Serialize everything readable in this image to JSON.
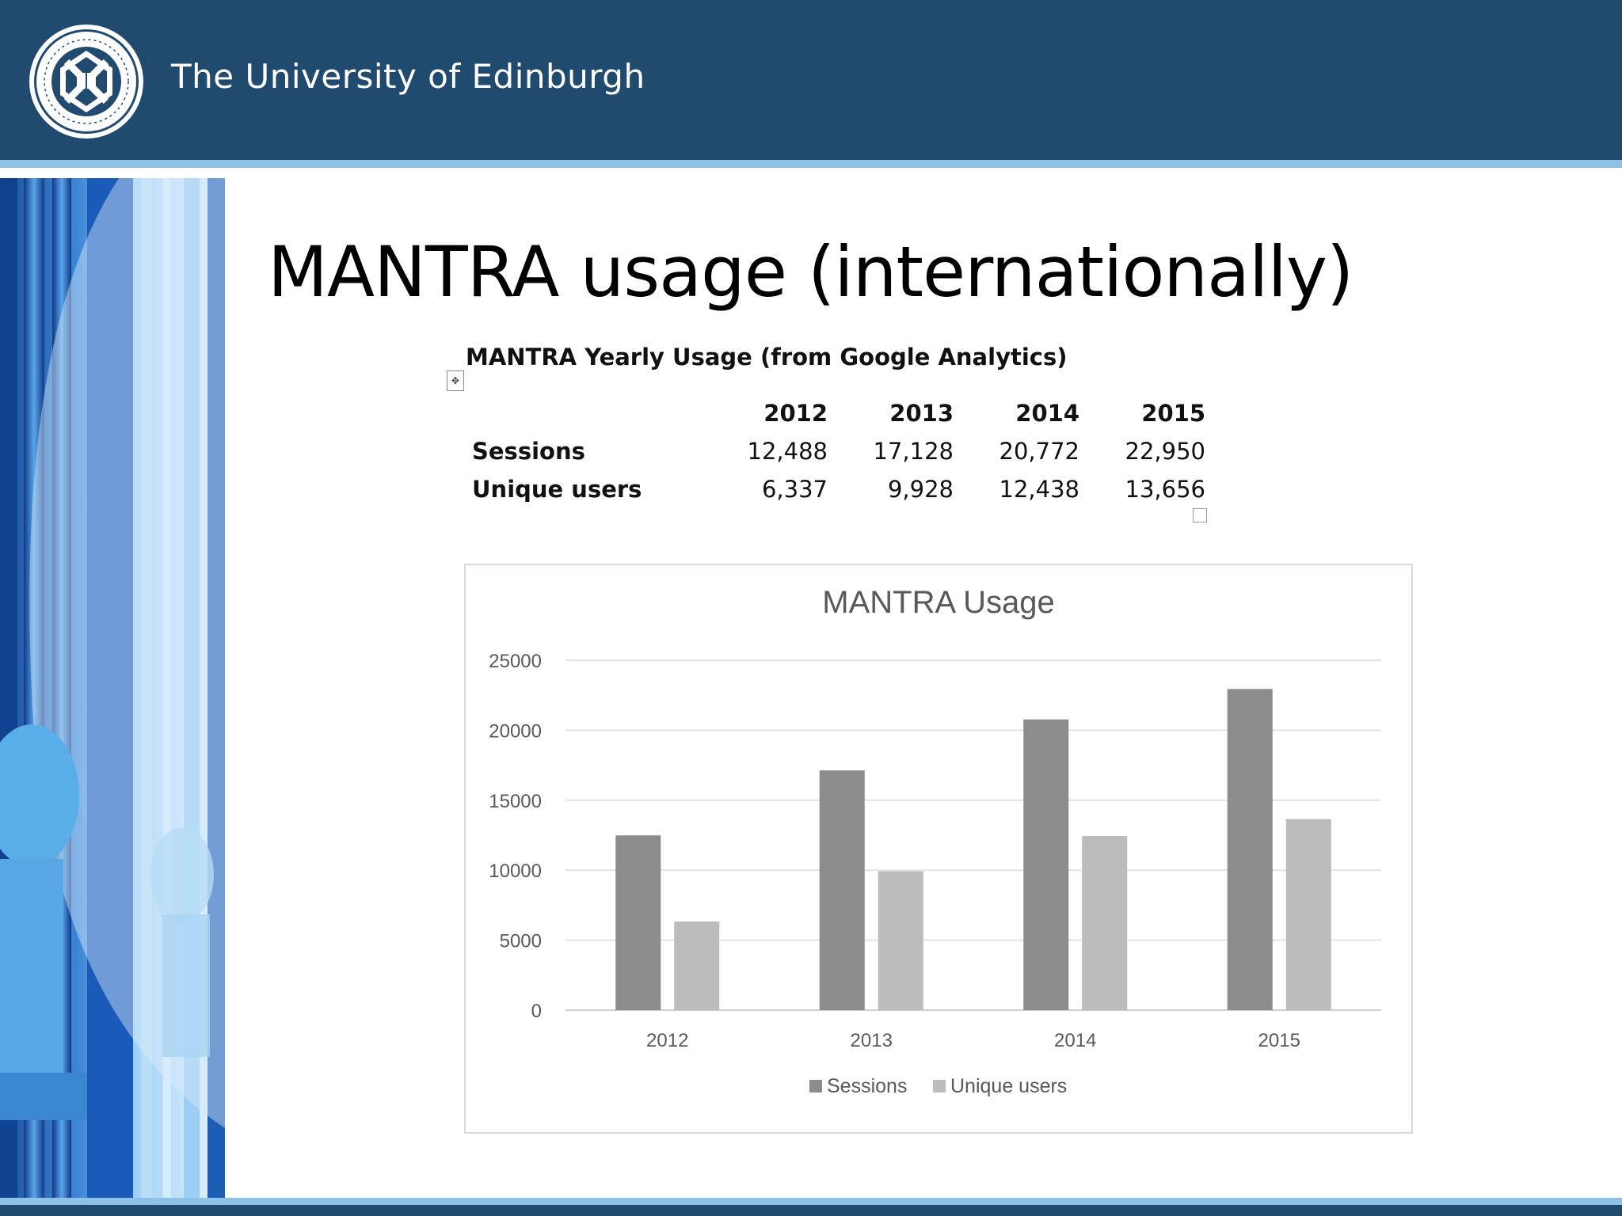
{
  "header": {
    "university_name": "The University of Edinburgh"
  },
  "slide": {
    "title": "MANTRA usage (internationally)"
  },
  "table": {
    "heading": "MANTRA Yearly Usage (from Google Analytics)",
    "years": [
      "2012",
      "2013",
      "2014",
      "2015"
    ],
    "rows": [
      {
        "label": "Sessions",
        "values": [
          "12,488",
          "17,128",
          "20,772",
          "22,950"
        ]
      },
      {
        "label": "Unique users",
        "values": [
          "6,337",
          "9,928",
          "12,438",
          "13,656"
        ]
      }
    ]
  },
  "colors": {
    "header_bg": "#214a6f",
    "stripe": "#8ec1e8",
    "sessions_bar": "#8c8c8e",
    "unique_bar": "#bcbcbe"
  },
  "chart_data": {
    "type": "bar",
    "title": "MANTRA Usage",
    "categories": [
      "2012",
      "2013",
      "2014",
      "2015"
    ],
    "series": [
      {
        "name": "Sessions",
        "values": [
          12488,
          17128,
          20772,
          22950
        ]
      },
      {
        "name": "Unique users",
        "values": [
          6337,
          9928,
          12438,
          13656
        ]
      }
    ],
    "yticks": [
      "0",
      "5000",
      "10000",
      "15000",
      "20000",
      "25000"
    ],
    "ylim": [
      0,
      25000
    ],
    "grid": true,
    "legend": "bottom-center"
  }
}
